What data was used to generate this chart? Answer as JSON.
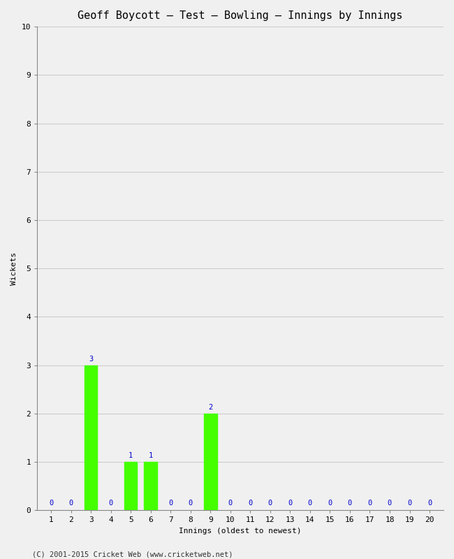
{
  "title": "Geoff Boycott – Test – Bowling – Innings by Innings",
  "xlabel": "Innings (oldest to newest)",
  "ylabel": "Wickets",
  "innings": [
    1,
    2,
    3,
    4,
    5,
    6,
    7,
    8,
    9,
    10,
    11,
    12,
    13,
    14,
    15,
    16,
    17,
    18,
    19,
    20
  ],
  "wickets": [
    0,
    0,
    3,
    0,
    1,
    1,
    0,
    0,
    2,
    0,
    0,
    0,
    0,
    0,
    0,
    0,
    0,
    0,
    0,
    0
  ],
  "bar_color": "#44ff00",
  "label_color": "#0000cc",
  "ylim": [
    0,
    10
  ],
  "yticks": [
    0,
    1,
    2,
    3,
    4,
    5,
    6,
    7,
    8,
    9,
    10
  ],
  "background_color": "#f0f0f0",
  "grid_color": "#cccccc",
  "title_fontsize": 11,
  "axis_label_fontsize": 8,
  "tick_fontsize": 8,
  "bar_label_fontsize": 7.5,
  "footer_text": "(C) 2001-2015 Cricket Web (www.cricketweb.net)",
  "footer_fontsize": 7.5,
  "monospace_font": "DejaVu Sans Mono"
}
